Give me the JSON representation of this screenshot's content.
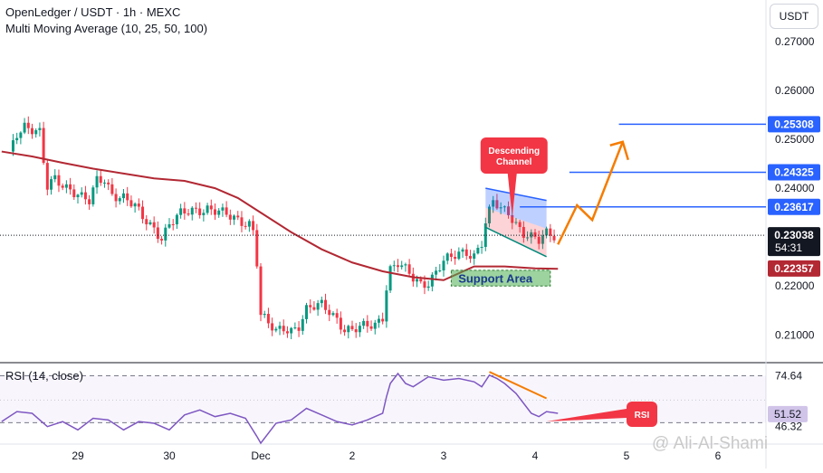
{
  "header": {
    "title": "OpenLedger / USDT · 1h · MEXC",
    "indicator": "Multi Moving Average (10, 25, 50, 100)",
    "currency": "USDT"
  },
  "watermark": "@ Ali-Al-Shami",
  "chart_data": [
    {
      "type": "candlestick",
      "ylim": [
        0.2045,
        0.2785
      ],
      "y_ticks": [
        "0.27000",
        "0.26000",
        "0.25000",
        "0.24000",
        "0.22000",
        "0.21000"
      ],
      "x_ticks": [
        {
          "label": "29",
          "x": 0
        },
        {
          "label": "30",
          "x": 24
        },
        {
          "label": "Dec",
          "x": 48
        },
        {
          "label": "2",
          "x": 72
        },
        {
          "label": "3",
          "x": 96
        },
        {
          "label": "4",
          "x": 120
        },
        {
          "label": "5",
          "x": 144
        },
        {
          "label": "6",
          "x": 168
        }
      ],
      "colors": {
        "up": "#089981",
        "down": "#f23645",
        "ma": "#b22833",
        "orange": "#f57c00",
        "blue": "#2962ff"
      },
      "key_points": [
        [
          -18,
          0.2475
        ],
        [
          -16,
          0.2515
        ],
        [
          -14,
          0.253
        ],
        [
          -12,
          0.252
        ],
        [
          -10,
          0.251
        ],
        [
          -9,
          0.245
        ],
        [
          -8,
          0.24
        ],
        [
          -6,
          0.242
        ],
        [
          -4,
          0.241
        ],
        [
          -2,
          0.24
        ],
        [
          1,
          0.238
        ],
        [
          3,
          0.237
        ],
        [
          5,
          0.2415
        ],
        [
          7,
          0.242
        ],
        [
          9,
          0.239
        ],
        [
          12,
          0.238
        ],
        [
          15,
          0.236
        ],
        [
          17,
          0.234
        ],
        [
          20,
          0.232
        ],
        [
          22,
          0.23
        ],
        [
          24,
          0.2325
        ],
        [
          27,
          0.2345
        ],
        [
          30,
          0.2355
        ],
        [
          34,
          0.236
        ],
        [
          37,
          0.235
        ],
        [
          40,
          0.234
        ],
        [
          42,
          0.2335
        ],
        [
          45,
          0.233
        ],
        [
          46,
          0.2315
        ],
        [
          47,
          0.225
        ],
        [
          48,
          0.214
        ],
        [
          50,
          0.212
        ],
        [
          52,
          0.2105
        ],
        [
          54,
          0.2115
        ],
        [
          56,
          0.2112
        ],
        [
          58,
          0.212
        ],
        [
          60,
          0.215
        ],
        [
          62,
          0.2155
        ],
        [
          64,
          0.216
        ],
        [
          66,
          0.215
        ],
        [
          68,
          0.2135
        ],
        [
          70,
          0.2112
        ],
        [
          72,
          0.2108
        ],
        [
          74,
          0.2112
        ],
        [
          76,
          0.2118
        ],
        [
          78,
          0.2122
        ],
        [
          80,
          0.214
        ],
        [
          81,
          0.22
        ],
        [
          82,
          0.2235
        ],
        [
          84,
          0.2245
        ],
        [
          86,
          0.223
        ],
        [
          88,
          0.2215
        ],
        [
          90,
          0.2205
        ],
        [
          92,
          0.221
        ],
        [
          94,
          0.223
        ],
        [
          96,
          0.225
        ],
        [
          98,
          0.2255
        ],
        [
          100,
          0.2265
        ],
        [
          102,
          0.227
        ],
        [
          104,
          0.2265
        ],
        [
          106,
          0.229
        ],
        [
          107,
          0.233
        ],
        [
          109,
          0.237
        ],
        [
          111,
          0.2355
        ],
        [
          113,
          0.235
        ],
        [
          115,
          0.233
        ],
        [
          117,
          0.231
        ],
        [
          119,
          0.23
        ],
        [
          121,
          0.229
        ],
        [
          123,
          0.2305
        ],
        [
          125,
          0.2303
        ]
      ],
      "moving_average": [
        [
          -20,
          0.2475
        ],
        [
          -12,
          0.2465
        ],
        [
          -4,
          0.2452
        ],
        [
          4,
          0.244
        ],
        [
          12,
          0.243
        ],
        [
          20,
          0.242
        ],
        [
          28,
          0.2415
        ],
        [
          36,
          0.24
        ],
        [
          42,
          0.238
        ],
        [
          48,
          0.235
        ],
        [
          56,
          0.231
        ],
        [
          64,
          0.2275
        ],
        [
          72,
          0.2248
        ],
        [
          80,
          0.223
        ],
        [
          88,
          0.2218
        ],
        [
          96,
          0.2212
        ],
        [
          104,
          0.224
        ],
        [
          112,
          0.224
        ],
        [
          120,
          0.2236
        ],
        [
          126,
          0.2235
        ]
      ],
      "descending_channel": {
        "upper": [
          [
            107,
            0.24
          ],
          [
            123,
            0.2375
          ]
        ],
        "lower": [
          [
            107,
            0.232
          ],
          [
            123,
            0.226
          ]
        ],
        "label": "Descending Channel"
      },
      "support_area": {
        "from": [
          0.22,
          0.2232
        ],
        "x": [
          98,
          124
        ],
        "label": "Support Area"
      },
      "resistance_lines": [
        {
          "price": 0.25308,
          "label": "0.25308",
          "x_start": 142
        },
        {
          "price": 0.24325,
          "label": "0.24325",
          "x_start": 129
        },
        {
          "price": 0.23617,
          "label": "0.23617",
          "x_start": 116
        }
      ],
      "price_labels": [
        {
          "value": 0.23038,
          "label": "0.23038",
          "sublabel": "54:31",
          "kind": "current"
        },
        {
          "value": 0.22357,
          "label": "0.22357",
          "kind": "ma"
        }
      ],
      "projection": [
        [
          126,
          0.2285
        ],
        [
          131,
          0.2365
        ],
        [
          135,
          0.2335
        ],
        [
          143,
          0.2495
        ]
      ]
    },
    {
      "type": "line",
      "title": "RSI (14, close)",
      "ylim": [
        34,
        82
      ],
      "levels": [
        74.64,
        46.32
      ],
      "value_label": "51.52",
      "level_labels": [
        "74.64",
        "46.32"
      ],
      "points": [
        [
          -20,
          47
        ],
        [
          -16,
          53
        ],
        [
          -12,
          52
        ],
        [
          -8,
          44
        ],
        [
          -4,
          47
        ],
        [
          0,
          42
        ],
        [
          4,
          49
        ],
        [
          8,
          48
        ],
        [
          12,
          42
        ],
        [
          16,
          47
        ],
        [
          20,
          46
        ],
        [
          24,
          42
        ],
        [
          28,
          51
        ],
        [
          32,
          54
        ],
        [
          36,
          50
        ],
        [
          40,
          52
        ],
        [
          44,
          49
        ],
        [
          47,
          38
        ],
        [
          48,
          34
        ],
        [
          52,
          46
        ],
        [
          56,
          48
        ],
        [
          60,
          55
        ],
        [
          64,
          51
        ],
        [
          68,
          47
        ],
        [
          72,
          45
        ],
        [
          76,
          48
        ],
        [
          80,
          52
        ],
        [
          81,
          62
        ],
        [
          82,
          70
        ],
        [
          84,
          76
        ],
        [
          86,
          70
        ],
        [
          88,
          68
        ],
        [
          92,
          74
        ],
        [
          96,
          72
        ],
        [
          100,
          73
        ],
        [
          104,
          71
        ],
        [
          106,
          68
        ],
        [
          108,
          75
        ],
        [
          110,
          73
        ],
        [
          112,
          70
        ],
        [
          115,
          64
        ],
        [
          117,
          58
        ],
        [
          119,
          52
        ],
        [
          121,
          50
        ],
        [
          123,
          53
        ],
        [
          126,
          52
        ]
      ],
      "divergence": [
        [
          108,
          77
        ],
        [
          123,
          61
        ]
      ],
      "rsi_tag": "RSI"
    }
  ]
}
